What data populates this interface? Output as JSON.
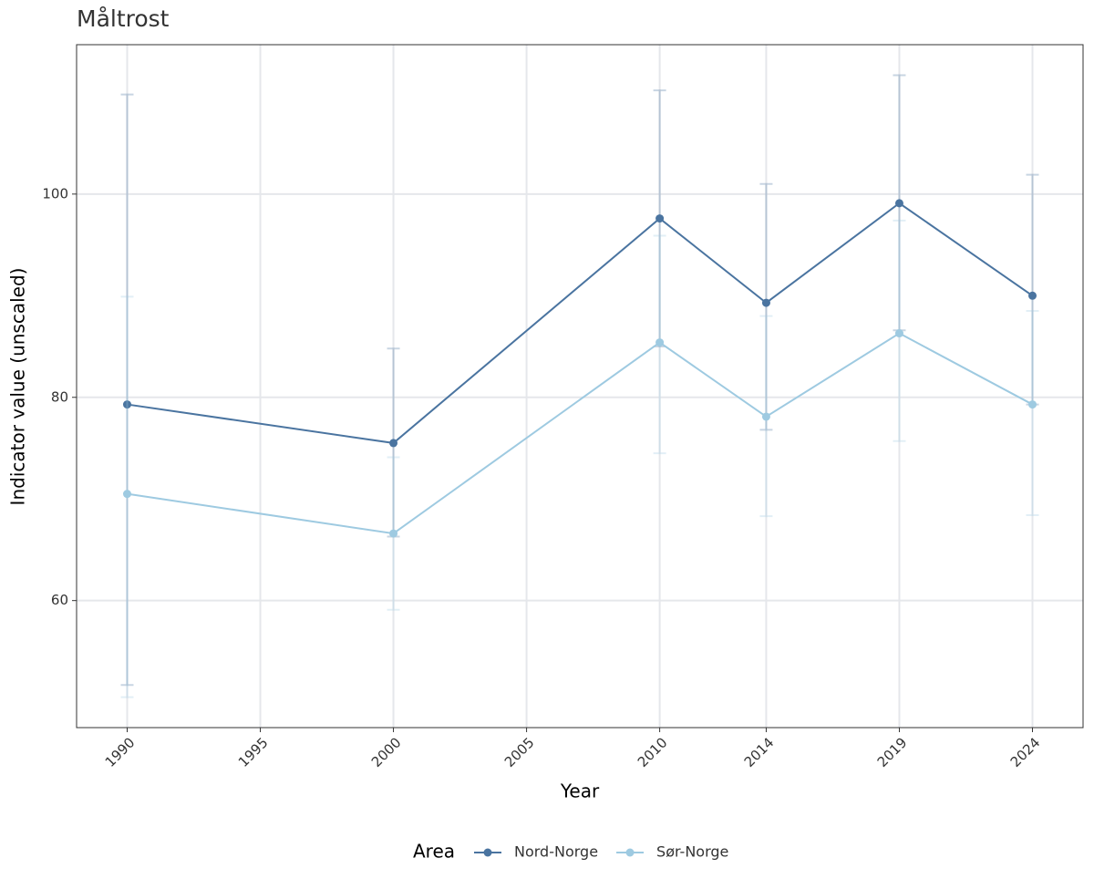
{
  "chart_data": {
    "type": "line",
    "title": "Måltrost",
    "x_label": "Year",
    "y_label": "Indicator value (unscaled)",
    "legend_title": "Area",
    "legend_position": "bottom",
    "grid": true,
    "x": [
      1990,
      2000,
      2010,
      2014,
      2019,
      2024
    ],
    "xlim": [
      1988.1,
      2025.9
    ],
    "xticks": [
      1990,
      1995,
      2000,
      2005,
      2010,
      2014,
      2019,
      2024
    ],
    "ylim": [
      47.5,
      114.7
    ],
    "yticks": [
      60,
      80,
      100
    ],
    "series": [
      {
        "name": "Nord-Norge",
        "color": "#4a74a0",
        "values": [
          79.3,
          75.5,
          97.6,
          89.3,
          99.1,
          90.0
        ],
        "lower": [
          51.7,
          66.3,
          85.0,
          76.8,
          86.6,
          79.3
        ],
        "upper": [
          109.8,
          84.8,
          110.2,
          101.0,
          111.7,
          101.9
        ]
      },
      {
        "name": "Sør-Norge",
        "color": "#9ecae1",
        "values": [
          70.5,
          66.6,
          85.4,
          78.1,
          86.3,
          79.3
        ],
        "lower": [
          50.5,
          59.1,
          74.5,
          68.3,
          75.7,
          68.4
        ],
        "upper": [
          89.9,
          74.1,
          95.9,
          88.0,
          97.4,
          88.5
        ]
      }
    ]
  }
}
